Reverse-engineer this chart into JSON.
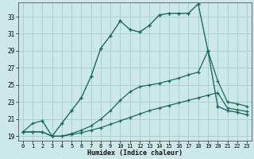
{
  "xlabel": "Humidex (Indice chaleur)",
  "bg_color": "#cce8e8",
  "grid_color": "#aad0d0",
  "line_color": "#1a6b5e",
  "xlim": [
    -0.5,
    23.5
  ],
  "ylim": [
    18.5,
    34.7
  ],
  "xtick_vals": [
    0,
    1,
    2,
    3,
    4,
    5,
    6,
    7,
    8,
    9,
    10,
    11,
    12,
    13,
    14,
    15,
    16,
    17,
    18,
    19,
    20,
    21,
    22,
    23
  ],
  "ytick_vals": [
    19,
    21,
    23,
    25,
    27,
    29,
    31,
    33
  ],
  "line1_x": [
    0,
    1,
    2,
    3,
    4,
    5,
    6,
    7,
    8,
    9,
    10,
    11,
    12,
    13,
    14,
    15,
    16,
    17,
    18,
    19,
    20,
    21,
    22,
    23
  ],
  "line1_y": [
    19.5,
    19.5,
    19.5,
    19.0,
    19.0,
    19.2,
    19.4,
    19.7,
    20.0,
    20.4,
    20.8,
    21.2,
    21.6,
    22.0,
    22.3,
    22.6,
    22.9,
    23.2,
    23.5,
    23.8,
    24.1,
    22.3,
    22.1,
    21.9
  ],
  "line2_x": [
    0,
    1,
    2,
    3,
    4,
    5,
    6,
    7,
    8,
    9,
    10,
    11,
    12,
    13,
    14,
    15,
    16,
    17,
    18,
    19,
    20,
    21,
    22,
    23
  ],
  "line2_y": [
    19.5,
    19.5,
    19.5,
    19.0,
    19.0,
    19.3,
    19.7,
    20.2,
    21.0,
    22.0,
    23.2,
    24.2,
    24.8,
    25.0,
    25.2,
    25.5,
    25.8,
    26.2,
    26.5,
    29.0,
    25.5,
    23.0,
    22.8,
    22.5
  ],
  "line3_x": [
    0,
    1,
    2,
    3,
    4,
    5,
    6,
    7,
    8,
    9,
    10,
    11,
    12,
    13,
    14,
    15,
    16,
    17,
    18,
    19,
    20,
    21,
    22,
    23
  ],
  "line3_y": [
    19.5,
    20.5,
    20.8,
    19.0,
    20.5,
    22.0,
    23.5,
    26.0,
    29.3,
    30.8,
    32.5,
    31.5,
    31.2,
    32.0,
    33.2,
    33.4,
    33.4,
    33.4,
    34.5,
    29.0,
    22.5,
    22.0,
    21.8,
    21.5
  ],
  "line4_x": [
    2,
    3,
    4,
    5,
    6,
    7,
    8,
    9,
    10,
    11,
    12,
    13,
    14,
    15,
    16,
    17,
    18,
    19,
    20,
    21,
    22,
    23
  ],
  "line4_y": [
    20.8,
    19.0,
    20.5,
    22.0,
    23.5,
    26.0,
    29.3,
    30.8,
    32.5,
    31.5,
    31.2,
    32.0,
    33.2,
    33.4,
    33.4,
    33.4,
    34.5,
    29.0,
    22.5,
    22.0,
    21.8,
    21.5
  ]
}
